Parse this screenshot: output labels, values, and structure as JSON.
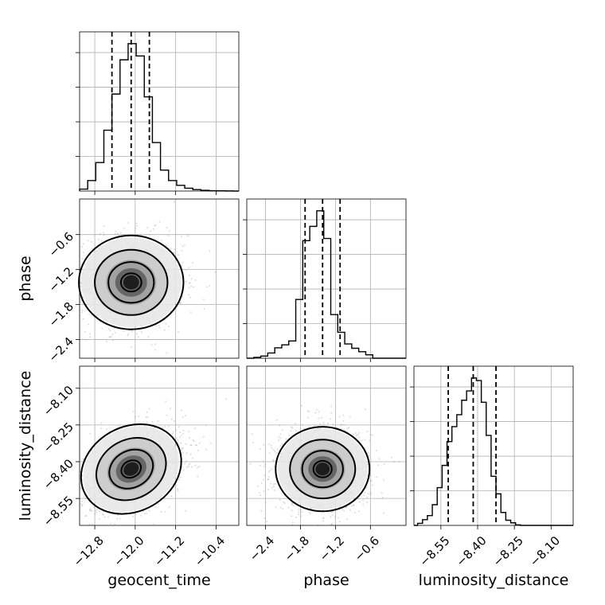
{
  "chart_data": {
    "type": "corner",
    "parameters": [
      "geocent_time",
      "phase",
      "luminosity_distance"
    ],
    "axes": {
      "geocent_time": {
        "label": "geocent_time",
        "range": [
          -13.1,
          -9.95
        ],
        "ticks": [
          -12.8,
          -12.0,
          -11.2,
          -10.4
        ],
        "tick_labels": [
          "−12.8",
          "−12.0",
          "−11.2",
          "−10.4"
        ]
      },
      "phase": {
        "label": "phase",
        "range": [
          -2.72,
          0.01
        ],
        "ticks": [
          -2.4,
          -1.8,
          -1.2,
          -0.6
        ],
        "tick_labels": [
          "−2.4",
          "−1.8",
          "−1.2",
          "−0.6"
        ]
      },
      "luminosity_distance": {
        "label": "luminosity_distance",
        "range": [
          -8.66,
          -8.01
        ],
        "ticks": [
          -8.55,
          -8.4,
          -8.25,
          -8.1
        ],
        "tick_labels": [
          "−8.55",
          "−8.40",
          "−8.25",
          "−8.10"
        ]
      }
    },
    "histograms": {
      "geocent_time": {
        "bin_edges": [
          -13.1,
          -12.94,
          -12.78,
          -12.62,
          -12.46,
          -12.3,
          -12.14,
          -11.98,
          -11.82,
          -11.66,
          -11.5,
          -11.34,
          -11.18,
          -11.02,
          -10.86,
          -10.7,
          -10.54,
          -10.38,
          -10.22,
          -10.06,
          -9.95
        ],
        "counts": [
          0.2,
          1.1,
          3.0,
          6.4,
          10.2,
          13.8,
          15.5,
          14.2,
          9.9,
          5.1,
          2.2,
          1.1,
          0.6,
          0.3,
          0.15,
          0.08,
          0.04,
          0.02,
          0.01,
          0
        ],
        "quantiles": [
          -12.46,
          -12.08,
          -11.72
        ]
      },
      "phase": {
        "bin_edges": [
          -2.72,
          -2.6,
          -2.48,
          -2.36,
          -2.24,
          -2.12,
          -2.0,
          -1.88,
          -1.76,
          -1.64,
          -1.52,
          -1.4,
          -1.28,
          -1.16,
          -1.04,
          -0.92,
          -0.8,
          -0.68,
          -0.56,
          -0.44,
          -0.32,
          -0.2,
          -0.08,
          0.01
        ],
        "counts": [
          0,
          0.2,
          0.5,
          1.2,
          2.4,
          3.1,
          4.0,
          13.6,
          27.2,
          30.5,
          34.1,
          27.7,
          10.1,
          6.0,
          3.3,
          2.3,
          1.5,
          0.8,
          0,
          0,
          0,
          0,
          0
        ],
        "quantiles": [
          -1.72,
          -1.42,
          -1.12
        ]
      },
      "luminosity_distance": {
        "bin_edges": [
          -8.66,
          -8.645,
          -8.625,
          -8.605,
          -8.585,
          -8.565,
          -8.545,
          -8.525,
          -8.505,
          -8.485,
          -8.465,
          -8.445,
          -8.425,
          -8.405,
          -8.385,
          -8.365,
          -8.345,
          -8.325,
          -8.305,
          -8.285,
          -8.265,
          -8.245,
          -8.225,
          -8.205,
          -8.185,
          -8.165,
          -8.01
        ],
        "counts": [
          0,
          0.4,
          1.1,
          1.9,
          4.0,
          7.3,
          11.6,
          16.2,
          19.1,
          21.4,
          24.2,
          26.0,
          28.5,
          28.0,
          23.8,
          17.4,
          9.5,
          6.1,
          2.5,
          1.0,
          0.5,
          0.1,
          0,
          0,
          0,
          0
        ],
        "quantiles": [
          -8.52,
          -8.418,
          -8.325
        ]
      }
    },
    "pairs": [
      {
        "x": "geocent_time",
        "y": "phase",
        "center": [
          -12.08,
          -1.42
        ],
        "sigma": [
          0.45,
          0.35
        ],
        "rho": 0.0
      },
      {
        "x": "geocent_time",
        "y": "luminosity_distance",
        "center": [
          -12.08,
          -8.43
        ],
        "sigma": [
          0.45,
          0.075
        ],
        "rho": 0.35
      },
      {
        "x": "phase",
        "y": "luminosity_distance",
        "center": [
          -1.42,
          -8.43
        ],
        "sigma": [
          0.35,
          0.075
        ],
        "rho": 0.0
      }
    ],
    "grid": true,
    "legend": "none"
  }
}
